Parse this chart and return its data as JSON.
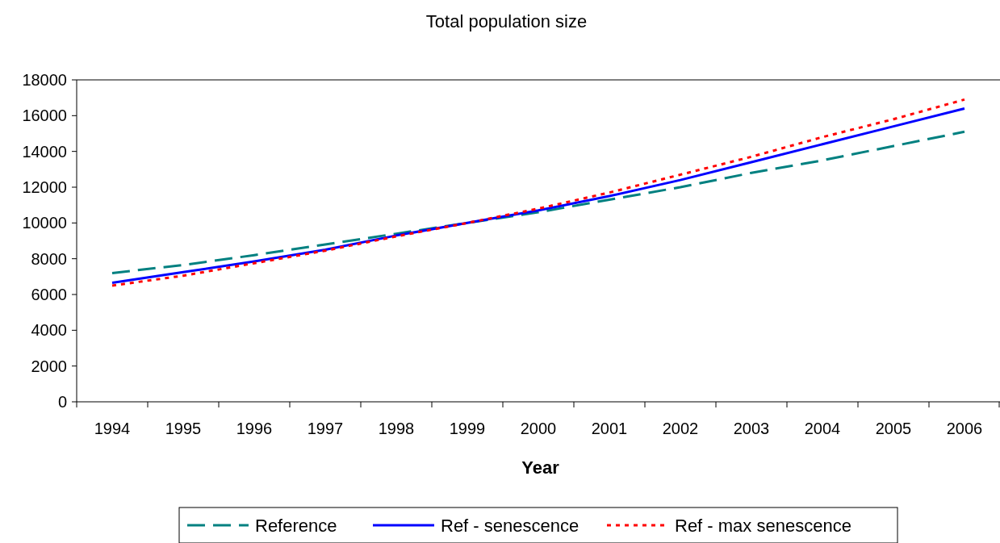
{
  "chart_data": {
    "type": "line",
    "title": "Total population size",
    "xlabel": "Year",
    "categories": [
      "1994",
      "1995",
      "1996",
      "1997",
      "1998",
      "1999",
      "2000",
      "2001",
      "2002",
      "2003",
      "2004",
      "2005",
      "2006"
    ],
    "ylim": [
      0,
      18000
    ],
    "yticks": [
      0,
      2000,
      4000,
      6000,
      8000,
      10000,
      12000,
      14000,
      16000,
      18000
    ],
    "legend": "bottom",
    "marker": "none",
    "series": [
      {
        "name": "Reference",
        "color": "#008080",
        "line_style": "dashed",
        "values": [
          7200,
          7650,
          8200,
          8800,
          9400,
          10000,
          10600,
          11300,
          12000,
          12800,
          13500,
          14300,
          15100
        ]
      },
      {
        "name": "Ref - senescence",
        "color": "#0000ff",
        "line_style": "solid",
        "values": [
          6650,
          7250,
          7850,
          8500,
          9300,
          10000,
          10700,
          11500,
          12400,
          13400,
          14400,
          15400,
          16400
        ]
      },
      {
        "name": "Ref - max senescence",
        "color": "#ff0000",
        "line_style": "dotted",
        "values": [
          6500,
          7050,
          7750,
          8450,
          9250,
          10000,
          10800,
          11700,
          12700,
          13700,
          14800,
          15800,
          16900
        ]
      }
    ]
  }
}
